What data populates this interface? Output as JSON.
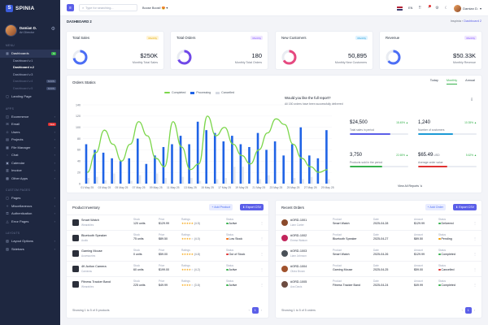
{
  "brand": {
    "name": "SPINIA",
    "mark": "S"
  },
  "profile": {
    "name": "Damian D.",
    "role": "Art Director"
  },
  "sidebar": {
    "section_menu": "MENU",
    "dashboards_label": "Dashboards",
    "dashboards_badge": "5",
    "dashboards_sub": [
      {
        "label": "Dashboard v.1",
        "badge": ""
      },
      {
        "label": "Dashboard v.2",
        "badge": ""
      },
      {
        "label": "Dashboard v.3",
        "badge": ""
      },
      {
        "label": "Dashboard v.4",
        "badge": "SOON"
      },
      {
        "label": "Dashboard v.5",
        "badge": "SOON"
      }
    ],
    "landing": "Landing Page",
    "section_apps": "APPS",
    "apps": [
      {
        "label": "Ecommerce",
        "icon": "cart-icon",
        "glyph": "◫",
        "badge": ""
      },
      {
        "label": "Email",
        "icon": "mail-icon",
        "glyph": "✉",
        "badge": "New"
      },
      {
        "label": "Users",
        "icon": "users-icon",
        "glyph": "☺",
        "badge": ""
      },
      {
        "label": "Projects",
        "icon": "folder-icon",
        "glyph": "▤",
        "badge": ""
      },
      {
        "label": "File Manager",
        "icon": "file-icon",
        "glyph": "▦",
        "badge": ""
      },
      {
        "label": "Chat",
        "icon": "chat-icon",
        "glyph": "◌",
        "badge": ""
      },
      {
        "label": "Calendar",
        "icon": "calendar-icon",
        "glyph": "▣",
        "badge": ""
      },
      {
        "label": "Invoice",
        "icon": "invoice-icon",
        "glyph": "▥",
        "badge": ""
      },
      {
        "label": "Other Apps",
        "icon": "grid-icon",
        "glyph": "▩",
        "badge": ""
      }
    ],
    "section_custom": "CUSTOM PAGES",
    "custom": [
      {
        "label": "Pages",
        "icon": "page-icon",
        "glyph": "▢"
      },
      {
        "label": "Miscellaneous",
        "icon": "puzzle-icon",
        "glyph": "✧"
      },
      {
        "label": "Authentication",
        "icon": "lock-icon",
        "glyph": "⚿"
      },
      {
        "label": "Error Pages",
        "icon": "warning-icon",
        "glyph": "△"
      }
    ],
    "section_layouts": "LAYOUTS",
    "layouts": [
      {
        "label": "Layout Options",
        "icon": "layout-icon",
        "glyph": "▧"
      },
      {
        "label": "Sidebars",
        "icon": "sidebar-icon",
        "glyph": "▨"
      }
    ]
  },
  "topbar": {
    "search_placeholder": "Type for searching...",
    "boost": "Boose Boost!",
    "boost_emoji": "😍",
    "lang": "EN",
    "user": "Damian D."
  },
  "breadcrumb": {
    "title": "DASHBOARD 2",
    "home": "Inspinia",
    "current": "Dashboard 2",
    "sep": "›"
  },
  "stats": [
    {
      "title": "Total Sales",
      "badge": "Monthly",
      "badge_bg": "#fff4d6",
      "badge_fg": "#e0a800",
      "value": "$250K",
      "sub": "Monthly Total Sales",
      "color": "#4c6ef5",
      "fill": 0.72
    },
    {
      "title": "Total Orders",
      "badge": "Monthly",
      "badge_bg": "#efe6ff",
      "badge_fg": "#7c4dff",
      "value": "180",
      "sub": "Monthly Total Orders",
      "color": "#7048e8",
      "fill": 0.68
    },
    {
      "title": "New Customers",
      "badge": "Monthly",
      "badge_bg": "#dff3ff",
      "badge_fg": "#1c9ad6",
      "value": "50,895",
      "sub": "Monthly New Customers",
      "color": "#e64980",
      "fill": 0.66
    },
    {
      "title": "Revenue",
      "badge": "Monthly",
      "badge_bg": "#efe6ff",
      "badge_fg": "#7c4dff",
      "value": "$50.33K",
      "sub": "Monthly Revenue",
      "color": "#4c6ef5",
      "fill": 0.64
    }
  ],
  "orders_chart": {
    "title": "Orders Statics",
    "tabs": [
      "Today",
      "Monthly",
      "Annual"
    ],
    "active_tab": "Monthly"
  },
  "chart_data": {
    "type": "bar",
    "title": "Orders Statics",
    "categories": [
      "01 May 25",
      "02 May 25",
      "03 May 25",
      "04 May 25",
      "05 May 25",
      "06 May 25",
      "07 May 25",
      "08 May 25",
      "09 May 25",
      "10 May 25",
      "11 May 25",
      "12 May 25",
      "13 May 25",
      "14 May 25",
      "15 May 25",
      "16 May 25",
      "17 May 25",
      "18 May 25",
      "19 May 25",
      "20 May 25",
      "21 May 25",
      "22 May 25",
      "23 May 25",
      "24 May 25",
      "25 May 25",
      "26 May 25",
      "27 May 25",
      "28 May 25",
      "29 May 25"
    ],
    "tick_labels": [
      "01 May 25",
      "03 May 25",
      "05 May 25",
      "07 May 25",
      "09 May 25",
      "11 May 25",
      "13 May 25",
      "15 May 25",
      "17 May 25",
      "19 May 25",
      "21 May 25",
      "23 May 25",
      "25 May 25",
      "27 May 25",
      "29 May 25"
    ],
    "ylim": [
      0,
      140
    ],
    "yticks": [
      0,
      20,
      40,
      60,
      80,
      100,
      120,
      140
    ],
    "series": [
      {
        "name": "Completed",
        "type": "line",
        "color": "#7bd64a",
        "values": [
          20,
          55,
          95,
          70,
          40,
          70,
          110,
          85,
          45,
          30,
          110,
          65,
          25,
          35,
          120,
          85,
          100,
          70,
          50,
          35,
          60,
          90,
          115,
          105,
          70,
          45,
          30,
          20,
          25
        ]
      },
      {
        "name": "Processing",
        "type": "bar",
        "color": "#1f63e6",
        "values": [
          70,
          60,
          55,
          45,
          40,
          45,
          80,
          35,
          50,
          65,
          70,
          85,
          70,
          110,
          95,
          90,
          75,
          85,
          70,
          65,
          90,
          60,
          75,
          50,
          70,
          100,
          50,
          45,
          95
        ]
      },
      {
        "name": "Cancelled",
        "type": "bar",
        "color": "#e9ecf2",
        "values": [
          10,
          12,
          6,
          18,
          0,
          5,
          15,
          0,
          18,
          10,
          0,
          12,
          10,
          5,
          0,
          8,
          10,
          30,
          30,
          0,
          8,
          15,
          0,
          0,
          10,
          8,
          12,
          0,
          8
        ]
      }
    ]
  },
  "report": {
    "question": "Would you like the full report?",
    "sub": "All 150 orders have been successfully delivered",
    "view_all": "View All Reports ⇲",
    "kpis": [
      {
        "value": "$24,500",
        "pct": "18.45% ▲",
        "label": "Total sales in period",
        "fill": 0.7,
        "color": "#5b5fe8"
      },
      {
        "value": "1,240",
        "pct": "10.35% ▲",
        "label": "Number of customers",
        "fill": 0.6,
        "color": "#1c9ad6"
      },
      {
        "value": "3,750",
        "pct": "22.65% ▲",
        "label": "Products sold in the period",
        "fill": 0.55,
        "color": "#37b24d"
      },
      {
        "value": "$65.49",
        "unit": "USD",
        "pct": "5.62% ▲",
        "label": "Average order value",
        "fill": 0.5,
        "color": "#e03131"
      }
    ]
  },
  "inventory": {
    "title": "Product Inventory",
    "add_label": "+ Add Product",
    "export_label": "⬇ Export CSV",
    "headers": {
      "stock": "Stock",
      "price": "Price",
      "ratings": "Ratings",
      "status": "Status"
    },
    "rows": [
      {
        "name": "Smart Watch",
        "category": "Wearables",
        "stock": "120 units",
        "price": "$129.99",
        "rating": 4.5,
        "rating_text": "(4.5)",
        "status": "Active",
        "status_color": "#37b24d"
      },
      {
        "name": "Bluetooth Speaker",
        "category": "Audio",
        "stock": "75 units",
        "price": "$89.50",
        "rating": 4.0,
        "rating_text": "(4.0)",
        "status": "Low Stock",
        "status_color": "#f76707"
      },
      {
        "name": "Gaming Mouse",
        "category": "Accessories",
        "stock": "0 units",
        "price": "$59.00",
        "rating": 4.8,
        "rating_text": "(4.8)",
        "status": "Out of Stock",
        "status_color": "#e03131"
      },
      {
        "name": "4K Action Camera",
        "category": "Cameras",
        "stock": "60 units",
        "price": "$199.00",
        "rating": 4.2,
        "rating_text": "(4.2)",
        "status": "Active",
        "status_color": "#37b24d"
      },
      {
        "name": "Fitness Tracker Band",
        "category": "Wearables",
        "stock": "225 units",
        "price": "$49.99",
        "rating": 3.8,
        "rating_text": "(3.8)",
        "status": "Active",
        "status_color": "#37b24d"
      }
    ],
    "showing": "Showing 1 to 5 of 5 products",
    "page": "1"
  },
  "orders": {
    "title": "Recent Orders",
    "add_label": "+ Add Order",
    "export_label": "⬇ Export CSV",
    "headers": {
      "product": "Product",
      "date": "Date",
      "amount": "Amount",
      "status": "Status"
    },
    "rows": [
      {
        "id": "#ORD-1001",
        "customer": "Liam Carter",
        "product": "Smart Watch",
        "date": "2025-04-28",
        "amount": "$129.99",
        "status": "Delivered",
        "status_color": "#37b24d",
        "av": "#8b4a2b"
      },
      {
        "id": "#ORD-1002",
        "customer": "Emma Watson",
        "product": "Bluetooth Speaker",
        "date": "2025-04-27",
        "amount": "$89.50",
        "status": "Pending",
        "status_color": "#f59f00",
        "av": "#c2255c"
      },
      {
        "id": "#ORD-1003",
        "customer": "Liam Johnson",
        "product": "Smart Watch",
        "date": "2025-04-26",
        "amount": "$129.99",
        "status": "Completed",
        "status_color": "#37b24d",
        "av": "#495057"
      },
      {
        "id": "#ORD-1004",
        "customer": "Olivia Brown",
        "product": "Gaming Mouse",
        "date": "2025-04-25",
        "amount": "$59.00",
        "status": "Cancelled",
        "status_color": "#e03131",
        "av": "#a0522d"
      },
      {
        "id": "#ORD-1005",
        "customer": "Ava Davis",
        "product": "Fitness Tracker Band",
        "date": "2025-04-24",
        "amount": "$49.99",
        "status": "Completed",
        "status_color": "#37b24d",
        "av": "#6d4c41"
      }
    ],
    "showing": "Showing 1 to 5 of 5 orders",
    "page": "1"
  }
}
